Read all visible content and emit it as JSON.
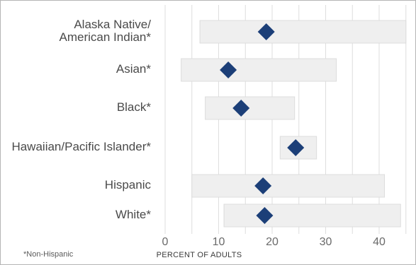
{
  "chart_data": {
    "type": "range-dot",
    "categories": [
      "Alaska Native/\nAmerican Indian*",
      "Asian*",
      "Black*",
      "Hawaiian/Pacific Islander*",
      "Hispanic",
      "White*"
    ],
    "series": [
      {
        "values": [
          18.9,
          11.8,
          14.2,
          24.4,
          18.3,
          18.6
        ]
      }
    ],
    "ranges": [
      [
        6.5,
        45.0
      ],
      [
        3.0,
        32.0
      ],
      [
        7.5,
        24.2
      ],
      [
        21.5,
        28.3
      ],
      [
        5.0,
        41.0
      ],
      [
        11.0,
        44.0
      ]
    ],
    "xlabel": "PERCENT OF ADULTS",
    "xlim": [
      0,
      45
    ],
    "xticks": [
      0,
      10,
      20,
      30,
      40
    ],
    "grid": true,
    "colors": {
      "marker": "#1c3f78",
      "range_fill": "#efefef",
      "range_stroke": "#dcdcdc",
      "grid": "#dedede"
    }
  },
  "footnote": "*Non-Hispanic"
}
